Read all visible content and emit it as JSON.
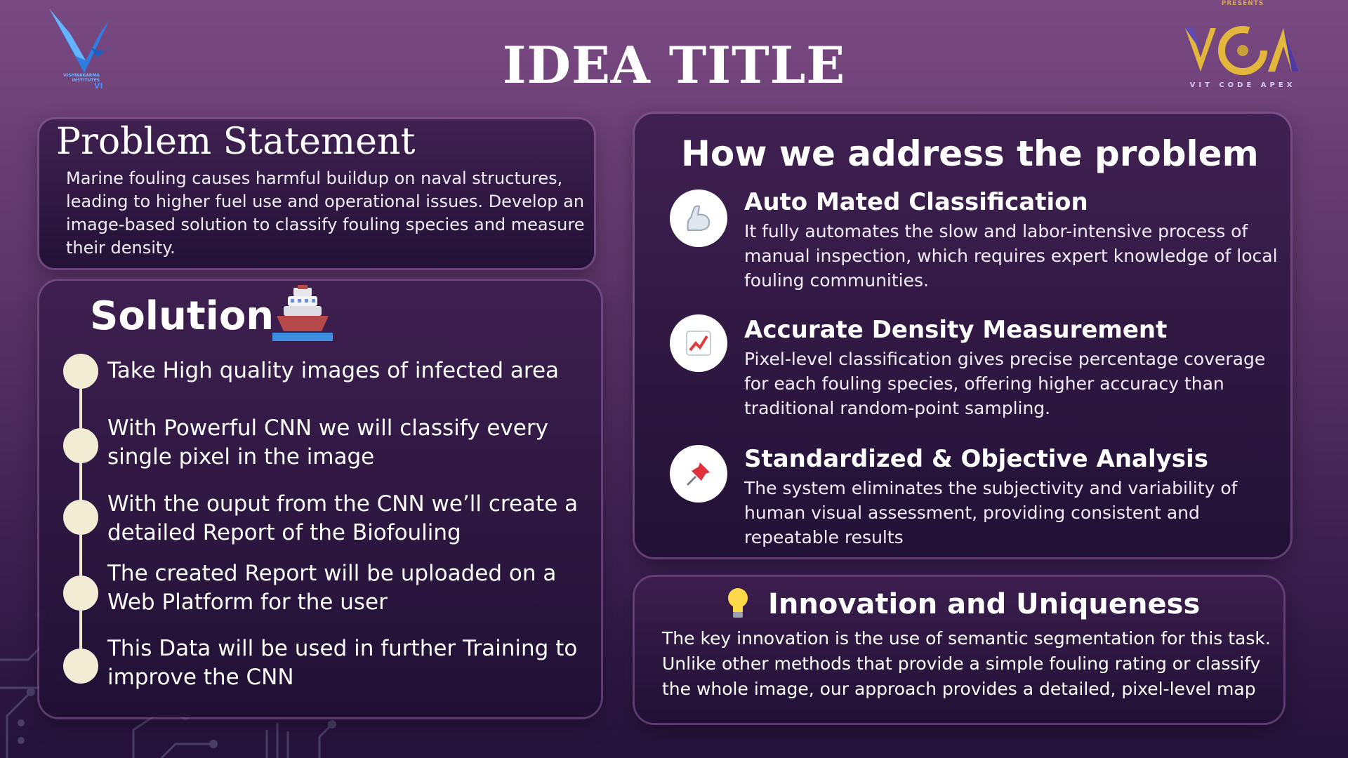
{
  "header": {
    "title": "IDEA TITLE",
    "left_logo_text": "VISHWAKARMA INSTITUTES",
    "left_logo_mark": "VI",
    "right_logo_presents": "PRESENTS",
    "right_logo_tagline": "VIT CODE APEX"
  },
  "problem": {
    "title": "Problem Statement",
    "text": "Marine fouling causes harmful buildup on naval structures, leading to higher fuel use and operational issues. Develop an image-based solution to classify fouling species and measure their density."
  },
  "solution": {
    "title": "Solution",
    "icon": "ship-icon",
    "steps": [
      "Take High quality images of infected area",
      "With Powerful CNN we will classify every single pixel in the image",
      "With the ouput from the CNN we’ll create a detailed Report of the Biofouling",
      "The created Report will be uploaded on a Web Platform for the user",
      "This Data will be used in further Training to improve the CNN"
    ]
  },
  "address": {
    "title": "How we address the problem",
    "features": [
      {
        "icon": "flexed-arm-icon",
        "title": "Auto Mated Classification",
        "desc": "It fully automates the slow and labor-intensive process of manual inspection, which requires expert knowledge of local fouling communities."
      },
      {
        "icon": "chart-increasing-icon",
        "title": "Accurate Density Measurement",
        "desc": "Pixel-level classification gives precise percentage coverage for each fouling species, offering higher accuracy than traditional random-point sampling."
      },
      {
        "icon": "pushpin-icon",
        "title": "Standardized & Objective Analysis",
        "desc": "The system eliminates the subjectivity and variability of human visual assessment, providing consistent and repeatable results"
      }
    ]
  },
  "innovation": {
    "icon": "light-bulb-icon",
    "title": "Innovation and Uniqueness",
    "text": "The key innovation is the use of semantic segmentation for this task. Unlike other methods that provide a simple fouling rating or classify the whole image, our approach provides a detailed, pixel-level map"
  },
  "colors": {
    "background_top": "#7a4a82",
    "background_bottom": "#24123a",
    "card": "#2c163f",
    "timeline": "#f1ecd3",
    "accent_gold": "#d6a84a"
  }
}
